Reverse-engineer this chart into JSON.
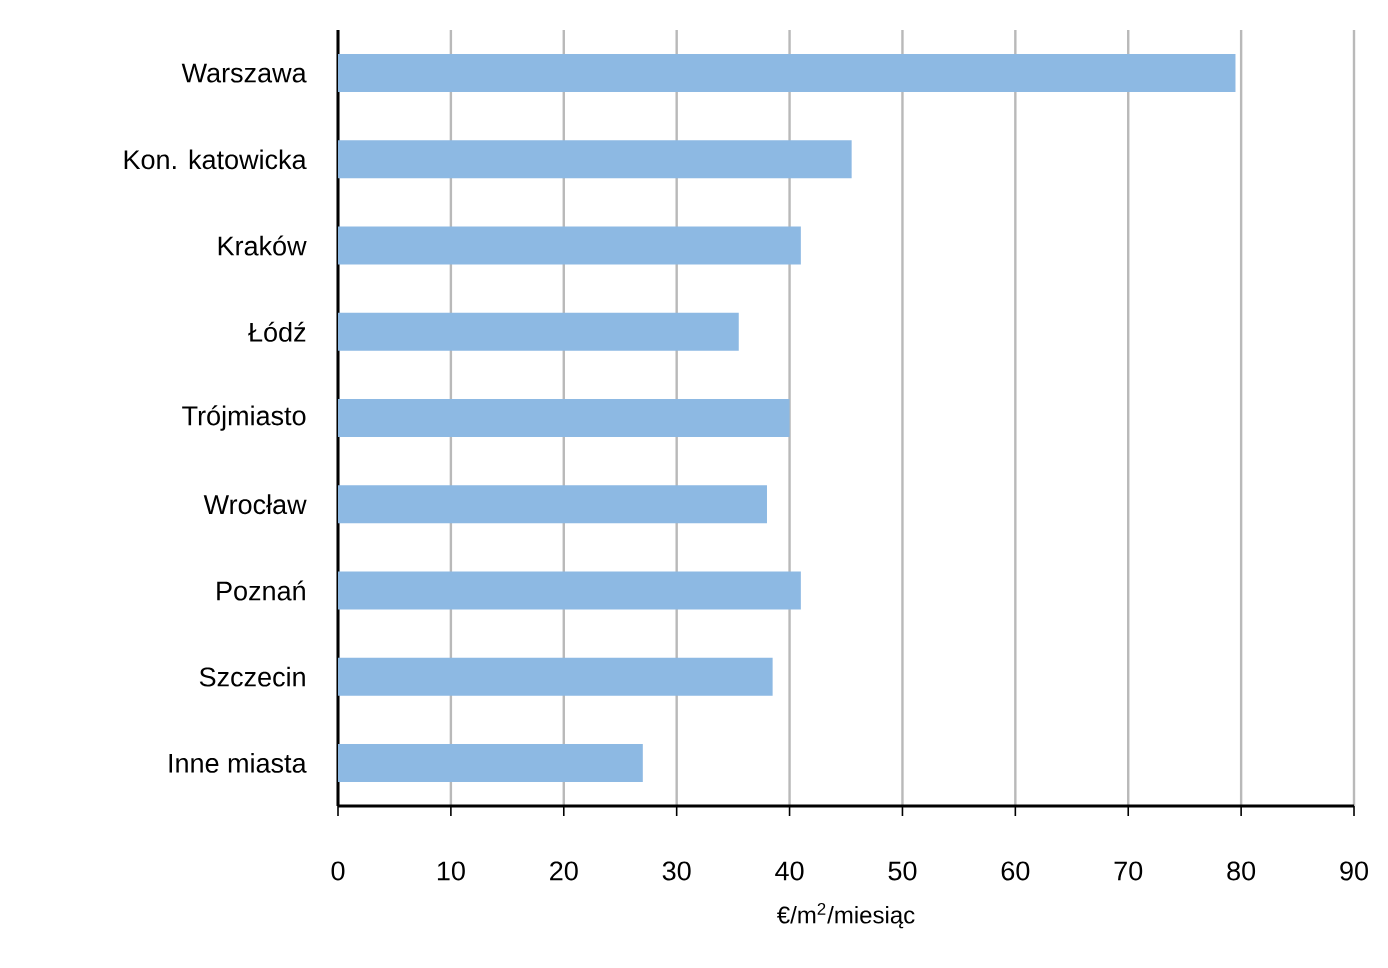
{
  "chart_data": {
    "type": "bar",
    "orientation": "horizontal",
    "xlabel": "€/m$^{2}$/miesiąc",
    "categories": [
      "Warszawa",
      "Kon. katowicka",
      "Kraków",
      "Łódź",
      "Trójmiasto",
      "Wrocław",
      "Poznań",
      "Szczecin",
      "Inne miasta"
    ],
    "values": [
      79.5,
      45.5,
      41,
      35.5,
      40,
      38,
      41,
      38.5,
      27
    ],
    "color": "#8db9e3",
    "xlim": [
      0,
      90
    ],
    "xticks": [
      0,
      10,
      20,
      30,
      40,
      50,
      60,
      70,
      80,
      90
    ],
    "grid": "x"
  }
}
